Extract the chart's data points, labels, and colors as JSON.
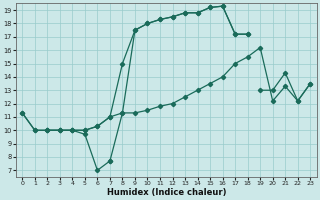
{
  "xlabel": "Humidex (Indice chaleur)",
  "bg_color": "#cce8e8",
  "line_color": "#1a6b5a",
  "grid_color": "#99cccc",
  "xlim": [
    -0.5,
    23.5
  ],
  "ylim": [
    6.5,
    19.5
  ],
  "xticks": [
    0,
    1,
    2,
    3,
    4,
    5,
    6,
    7,
    8,
    9,
    10,
    11,
    12,
    13,
    14,
    15,
    16,
    17,
    18,
    19,
    20,
    21,
    22,
    23
  ],
  "yticks": [
    7,
    8,
    9,
    10,
    11,
    12,
    13,
    14,
    15,
    16,
    17,
    18,
    19
  ],
  "line1": [
    [
      0,
      11.3
    ],
    [
      1,
      10
    ],
    [
      2,
      10
    ],
    [
      3,
      10
    ],
    [
      4,
      10
    ],
    [
      5,
      9.7
    ],
    [
      6,
      7
    ],
    [
      7,
      7.7
    ]
  ],
  "line2": [
    [
      0,
      11.3
    ],
    [
      1,
      10
    ],
    [
      2,
      10
    ],
    [
      3,
      10
    ],
    [
      4,
      10
    ],
    [
      5,
      10
    ],
    [
      6,
      10.3
    ],
    [
      7,
      11
    ],
    [
      8,
      11.3
    ],
    [
      9,
      11.3
    ],
    [
      10,
      11.5
    ],
    [
      11,
      11.8
    ],
    [
      12,
      12
    ],
    [
      13,
      12.5
    ],
    [
      14,
      13
    ],
    [
      15,
      13.5
    ],
    [
      16,
      14
    ],
    [
      17,
      15
    ],
    [
      18,
      15.5
    ],
    [
      19,
      16.2
    ],
    [
      20,
      12.2
    ],
    [
      21,
      13.3
    ],
    [
      22,
      12.2
    ],
    [
      23,
      13.5
    ]
  ],
  "line3": [
    [
      2,
      10
    ],
    [
      3,
      10
    ],
    [
      4,
      10
    ],
    [
      5,
      10
    ],
    [
      6,
      10.3
    ],
    [
      7,
      11
    ],
    [
      8,
      15
    ],
    [
      9,
      17.5
    ],
    [
      10,
      18
    ],
    [
      11,
      18.3
    ],
    [
      12,
      18.5
    ],
    [
      13,
      18.8
    ],
    [
      14,
      18.8
    ],
    [
      15,
      19.2
    ],
    [
      16,
      19.3
    ],
    [
      17,
      17.2
    ],
    [
      18,
      17.2
    ]
  ],
  "line4": [
    [
      7,
      7.7
    ],
    [
      8,
      11.3
    ],
    [
      9,
      17.5
    ],
    [
      10,
      18
    ],
    [
      11,
      18.3
    ],
    [
      12,
      18.5
    ],
    [
      13,
      18.8
    ],
    [
      14,
      18.8
    ],
    [
      15,
      19.2
    ],
    [
      16,
      19.3
    ],
    [
      17,
      17.2
    ],
    [
      18,
      17.2
    ]
  ],
  "line5": [
    [
      19,
      13
    ],
    [
      20,
      13
    ],
    [
      21,
      14.3
    ],
    [
      22,
      12.2
    ],
    [
      23,
      13.5
    ]
  ]
}
